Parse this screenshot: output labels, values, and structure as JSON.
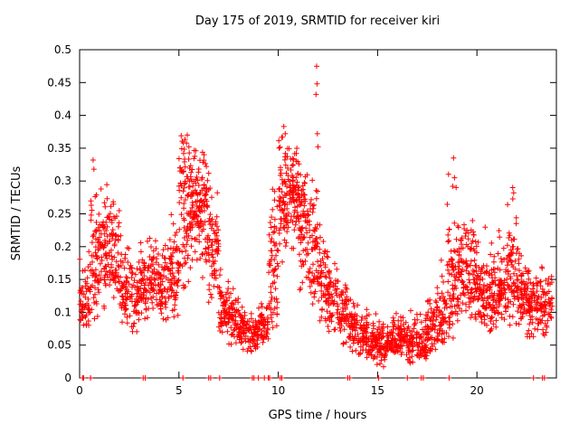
{
  "window": {
    "background": "#ffffff"
  },
  "chart_data": {
    "type": "scatter",
    "title": "Day 175 of 2019, SRMTID for receiver kiri",
    "xlabel": "GPS time / hours",
    "ylabel": "SRMTID / TECUs",
    "xlim": [
      0,
      24
    ],
    "ylim": [
      0,
      0.5
    ],
    "xtick_labels": [
      "0",
      "5",
      "10",
      "15",
      "20"
    ],
    "ytick_labels": [
      "0",
      "0.05",
      "0.1",
      "0.15",
      "0.2",
      "0.25",
      "0.3",
      "0.35",
      "0.4",
      "0.45",
      "0.5"
    ],
    "grid": false,
    "legend": null,
    "marker": {
      "symbol": "plus",
      "size": 6
    },
    "colors": {
      "marker": "#ff0000",
      "axis": "#000000",
      "background": "#ffffff"
    },
    "series_name": "SRMTID",
    "seed": 42,
    "density_profile": [
      [
        0.0,
        0.5,
        55,
        0.12,
        0.035,
        0.08,
        0.25
      ],
      [
        0.5,
        1.0,
        65,
        0.17,
        0.05,
        0.09,
        0.33
      ],
      [
        1.0,
        1.5,
        65,
        0.2,
        0.04,
        0.1,
        0.3
      ],
      [
        1.5,
        2.0,
        65,
        0.19,
        0.04,
        0.1,
        0.28
      ],
      [
        2.0,
        2.5,
        55,
        0.13,
        0.03,
        0.08,
        0.22
      ],
      [
        2.5,
        3.0,
        55,
        0.12,
        0.03,
        0.07,
        0.2
      ],
      [
        3.0,
        3.5,
        55,
        0.14,
        0.03,
        0.09,
        0.21
      ],
      [
        3.5,
        4.0,
        55,
        0.15,
        0.03,
        0.09,
        0.22
      ],
      [
        4.0,
        4.5,
        55,
        0.13,
        0.035,
        0.08,
        0.22
      ],
      [
        4.5,
        5.0,
        65,
        0.16,
        0.04,
        0.09,
        0.25
      ],
      [
        5.0,
        5.5,
        75,
        0.25,
        0.06,
        0.12,
        0.37
      ],
      [
        5.5,
        6.0,
        75,
        0.27,
        0.05,
        0.13,
        0.36
      ],
      [
        6.0,
        6.5,
        75,
        0.26,
        0.05,
        0.15,
        0.35
      ],
      [
        6.5,
        7.0,
        65,
        0.2,
        0.05,
        0.1,
        0.3
      ],
      [
        7.0,
        7.5,
        55,
        0.11,
        0.025,
        0.06,
        0.17
      ],
      [
        7.5,
        8.0,
        55,
        0.09,
        0.02,
        0.05,
        0.14
      ],
      [
        8.0,
        8.5,
        55,
        0.075,
        0.015,
        0.04,
        0.12
      ],
      [
        8.5,
        9.0,
        55,
        0.065,
        0.015,
        0.04,
        0.1
      ],
      [
        9.0,
        9.5,
        55,
        0.08,
        0.02,
        0.05,
        0.14
      ],
      [
        9.5,
        10.0,
        65,
        0.17,
        0.06,
        0.07,
        0.31
      ],
      [
        10.0,
        10.5,
        75,
        0.27,
        0.05,
        0.16,
        0.38
      ],
      [
        10.5,
        11.0,
        75,
        0.28,
        0.045,
        0.18,
        0.37
      ],
      [
        11.0,
        11.5,
        75,
        0.24,
        0.05,
        0.12,
        0.35
      ],
      [
        11.5,
        12.0,
        65,
        0.18,
        0.05,
        0.1,
        0.33
      ],
      [
        12.0,
        12.5,
        55,
        0.14,
        0.04,
        0.08,
        0.3
      ],
      [
        12.5,
        13.0,
        55,
        0.12,
        0.03,
        0.07,
        0.2
      ],
      [
        13.0,
        13.5,
        55,
        0.1,
        0.025,
        0.05,
        0.16
      ],
      [
        13.5,
        14.0,
        55,
        0.08,
        0.02,
        0.04,
        0.14
      ],
      [
        14.0,
        14.5,
        55,
        0.065,
        0.018,
        0.03,
        0.11
      ],
      [
        14.5,
        15.0,
        55,
        0.055,
        0.015,
        0.02,
        0.1
      ],
      [
        15.0,
        15.5,
        55,
        0.05,
        0.015,
        0.015,
        0.09
      ],
      [
        15.5,
        16.0,
        55,
        0.06,
        0.015,
        0.03,
        0.1
      ],
      [
        16.0,
        16.5,
        55,
        0.065,
        0.015,
        0.03,
        0.1
      ],
      [
        16.5,
        17.0,
        55,
        0.06,
        0.018,
        0.02,
        0.11
      ],
      [
        17.0,
        17.5,
        55,
        0.06,
        0.02,
        0.01,
        0.11
      ],
      [
        17.5,
        18.0,
        55,
        0.075,
        0.02,
        0.04,
        0.13
      ],
      [
        18.0,
        18.5,
        55,
        0.09,
        0.03,
        0.05,
        0.18
      ],
      [
        18.5,
        19.0,
        65,
        0.14,
        0.06,
        0.06,
        0.33
      ],
      [
        19.0,
        19.5,
        65,
        0.16,
        0.05,
        0.08,
        0.27
      ],
      [
        19.5,
        20.0,
        65,
        0.15,
        0.04,
        0.08,
        0.26
      ],
      [
        20.0,
        20.5,
        65,
        0.13,
        0.035,
        0.08,
        0.24
      ],
      [
        20.5,
        21.0,
        65,
        0.12,
        0.03,
        0.07,
        0.22
      ],
      [
        21.0,
        21.5,
        65,
        0.13,
        0.035,
        0.08,
        0.24
      ],
      [
        21.5,
        22.0,
        65,
        0.15,
        0.05,
        0.08,
        0.29
      ],
      [
        22.0,
        22.5,
        65,
        0.13,
        0.03,
        0.08,
        0.2
      ],
      [
        22.5,
        23.0,
        65,
        0.12,
        0.03,
        0.06,
        0.18
      ],
      [
        23.0,
        23.5,
        55,
        0.11,
        0.03,
        0.05,
        0.17
      ],
      [
        23.5,
        23.8,
        25,
        0.11,
        0.03,
        0.06,
        0.16
      ]
    ],
    "outliers": [
      [
        0.68,
        0.332
      ],
      [
        0.72,
        0.318
      ],
      [
        5.42,
        0.37
      ],
      [
        5.5,
        0.352
      ],
      [
        10.28,
        0.383
      ],
      [
        10.35,
        0.372
      ],
      [
        11.93,
        0.475
      ],
      [
        11.95,
        0.448
      ],
      [
        11.9,
        0.432
      ],
      [
        11.97,
        0.372
      ],
      [
        12.0,
        0.352
      ],
      [
        18.82,
        0.335
      ],
      [
        18.87,
        0.305
      ],
      [
        18.78,
        0.292
      ],
      [
        21.8,
        0.29
      ],
      [
        21.85,
        0.282
      ]
    ],
    "zero_marker_x": [
      0.15,
      0.2,
      0.55,
      3.2,
      3.3,
      5.2,
      6.5,
      6.6,
      7.05,
      8.7,
      8.78,
      9.0,
      9.3,
      9.5,
      9.56,
      10.1,
      10.18,
      13.5,
      13.6,
      15.05,
      16.5,
      17.2,
      17.3,
      18.6,
      22.85,
      23.3,
      23.4
    ]
  }
}
